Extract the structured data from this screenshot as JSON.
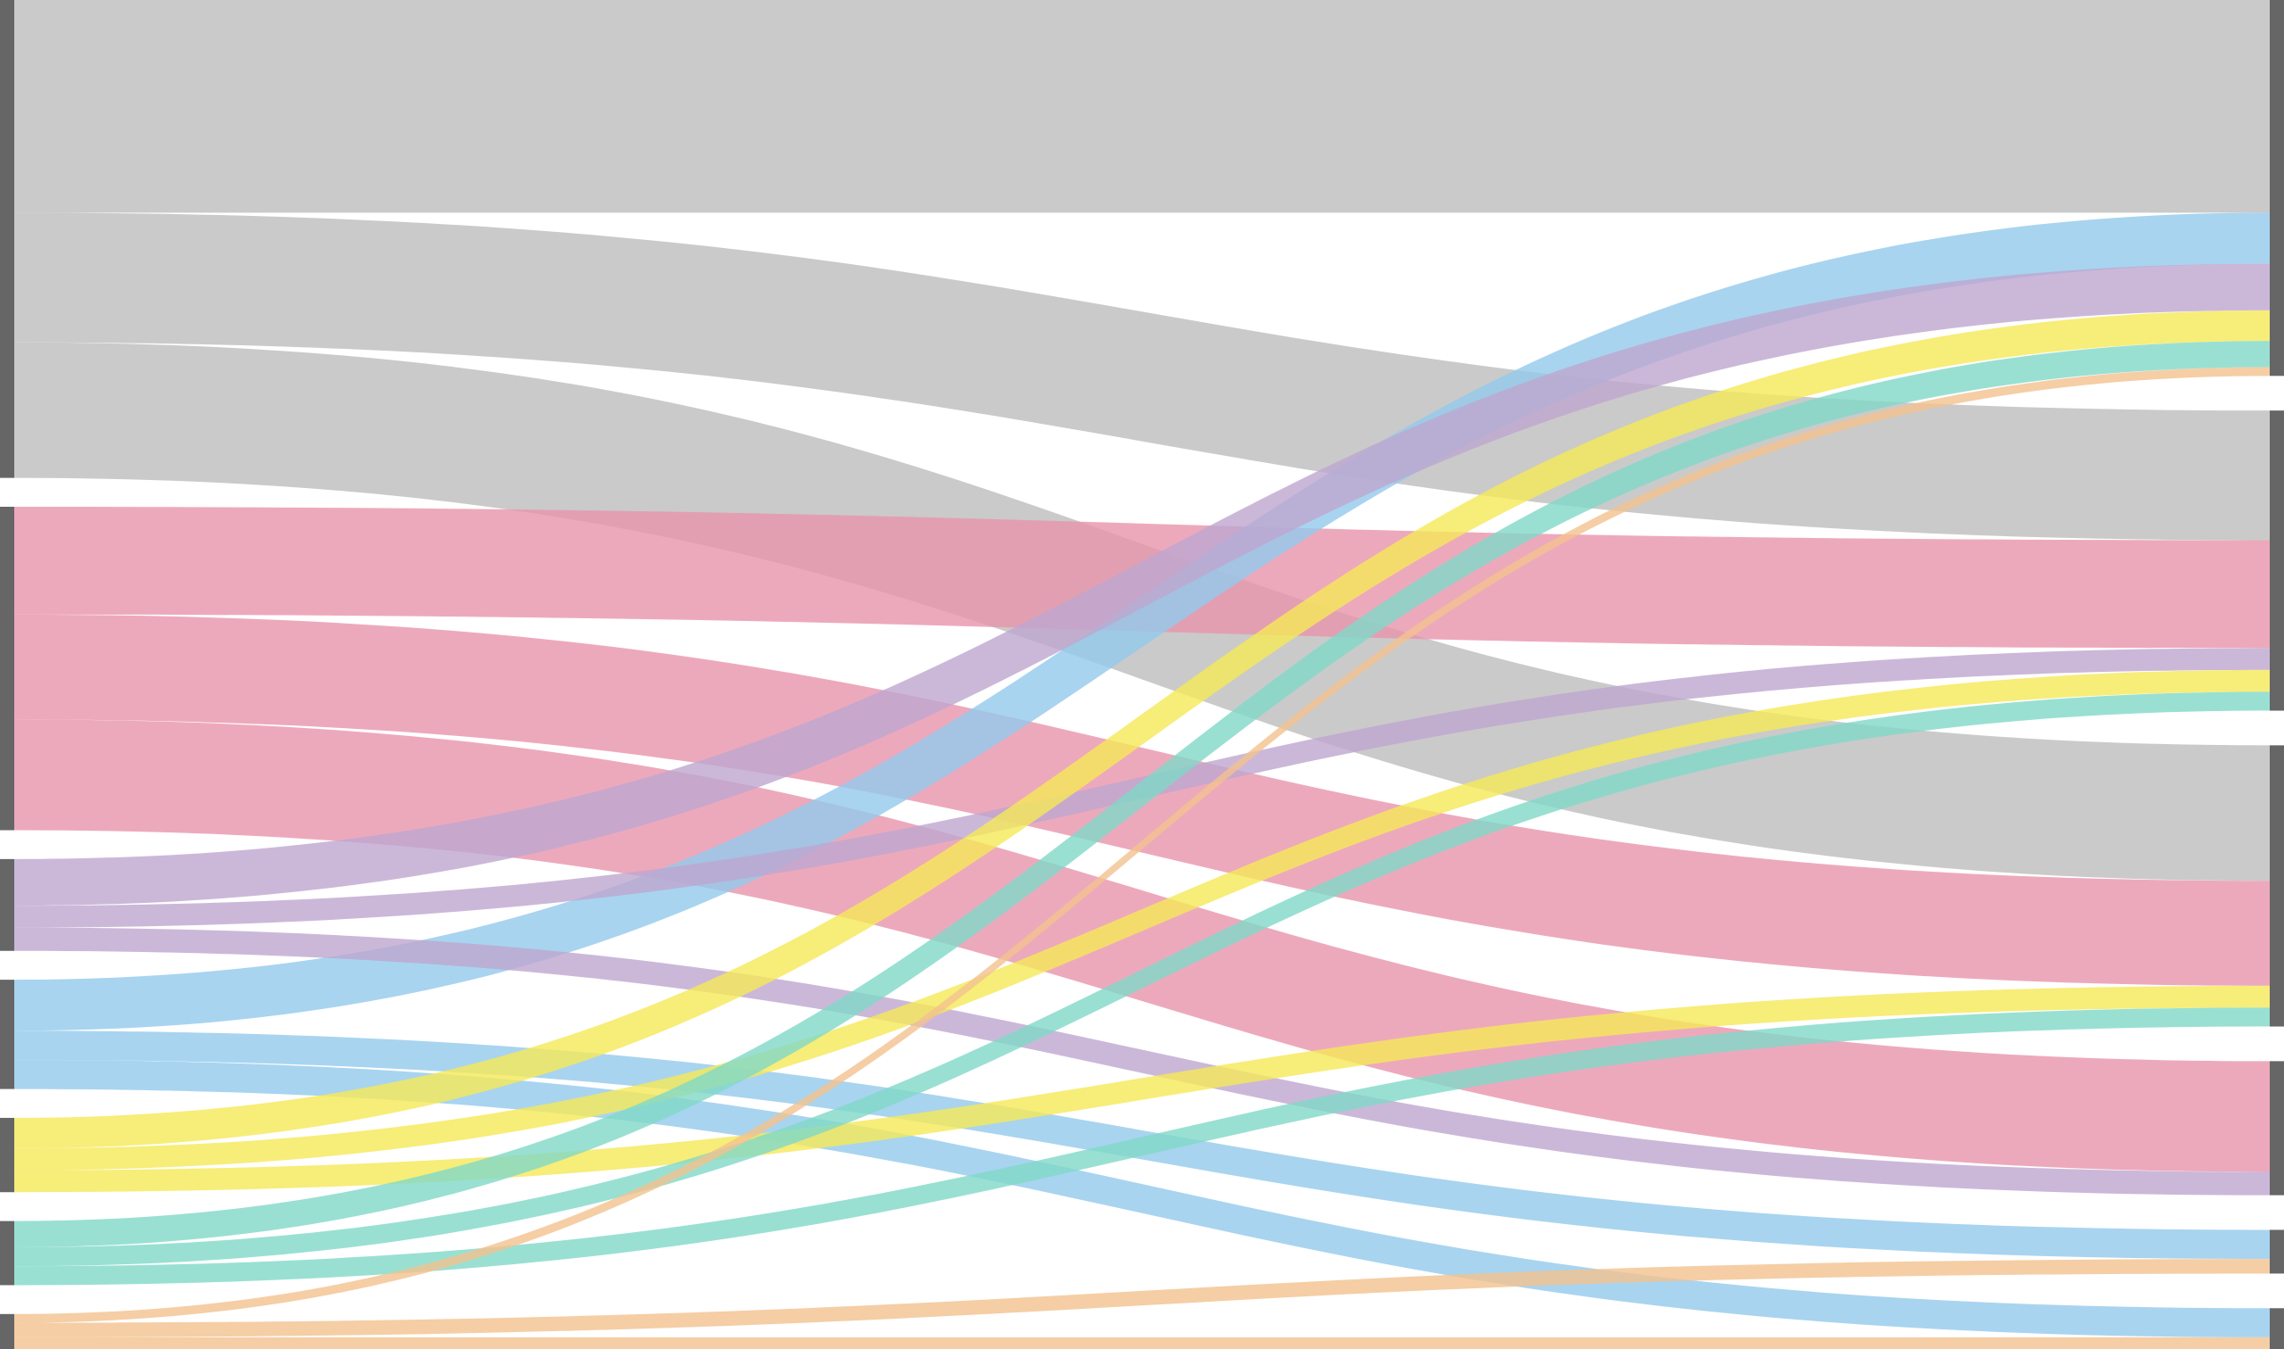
{
  "chart_data": {
    "type": "sankey",
    "node_color": "#666666",
    "links": [
      {
        "source": 0,
        "target": 0,
        "value": 146,
        "color": "#bdbdbd"
      },
      {
        "source": 0,
        "target": 1,
        "value": 89,
        "color": "#bdbdbd"
      },
      {
        "source": 0,
        "target": 2,
        "value": 93,
        "color": "#bdbdbd"
      },
      {
        "source": 1,
        "target": 1,
        "value": 74,
        "color": "#e993ab"
      },
      {
        "source": 1,
        "target": 2,
        "value": 72,
        "color": "#e993ab"
      },
      {
        "source": 1,
        "target": 3,
        "value": 76,
        "color": "#e993ab"
      },
      {
        "source": 3,
        "target": 0,
        "value": 35,
        "color": "#92c9ec"
      },
      {
        "source": 2,
        "target": 0,
        "value": 32,
        "color": "#bea6cf"
      },
      {
        "source": 2,
        "target": 1,
        "value": 15,
        "color": "#bea6cf"
      },
      {
        "source": 2,
        "target": 3,
        "value": 16,
        "color": "#bea6cf"
      },
      {
        "source": 3,
        "target": 4,
        "value": 20,
        "color": "#92c9ec"
      },
      {
        "source": 3,
        "target": 5,
        "value": 20,
        "color": "#92c9ec"
      },
      {
        "source": 4,
        "target": 0,
        "value": 21,
        "color": "#f5e957"
      },
      {
        "source": 4,
        "target": 1,
        "value": 15,
        "color": "#f5e957"
      },
      {
        "source": 4,
        "target": 2,
        "value": 15,
        "color": "#f5e957"
      },
      {
        "source": 5,
        "target": 0,
        "value": 18,
        "color": "#7fd8c8"
      },
      {
        "source": 5,
        "target": 1,
        "value": 13,
        "color": "#7fd8c8"
      },
      {
        "source": 5,
        "target": 2,
        "value": 13,
        "color": "#7fd8c8"
      },
      {
        "source": 6,
        "target": 0,
        "value": 6,
        "color": "#f3c28f"
      },
      {
        "source": 6,
        "target": 4,
        "value": 10,
        "color": "#f3c28f"
      },
      {
        "source": 6,
        "target": 5,
        "value": 8,
        "color": "#f3c28f"
      }
    ]
  }
}
